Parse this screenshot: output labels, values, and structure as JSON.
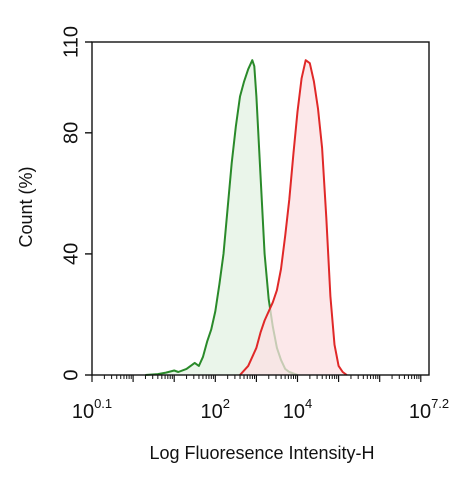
{
  "chart_data": {
    "type": "area",
    "title": "",
    "xlabel": "Log Fluoresence Intensity-H",
    "ylabel": "Count  (%)",
    "x_scale": "log",
    "xlim_exp": [
      -1,
      7.2
    ],
    "ylim": [
      0,
      110
    ],
    "y_ticks": [
      0,
      40,
      80,
      110
    ],
    "x_ticks": [
      {
        "exp": -1,
        "base": "10",
        "sup": "0.1"
      },
      {
        "exp": 2,
        "base": "10",
        "sup": "2"
      },
      {
        "exp": 4,
        "base": "10",
        "sup": "4"
      },
      {
        "exp": 7.2,
        "base": "10",
        "sup": "7.2"
      }
    ],
    "grid": false,
    "legend": "none",
    "series": [
      {
        "color": "#2a8a2a",
        "fill": "#e3f1e3",
        "points": [
          [
            0.3,
            0
          ],
          [
            0.6,
            0.3
          ],
          [
            0.8,
            0.8
          ],
          [
            1.0,
            1.5
          ],
          [
            1.1,
            1
          ],
          [
            1.3,
            2
          ],
          [
            1.5,
            4
          ],
          [
            1.6,
            3
          ],
          [
            1.7,
            6
          ],
          [
            1.8,
            11
          ],
          [
            1.9,
            15
          ],
          [
            2.0,
            21
          ],
          [
            2.1,
            30
          ],
          [
            2.2,
            40
          ],
          [
            2.3,
            55
          ],
          [
            2.4,
            70
          ],
          [
            2.5,
            82
          ],
          [
            2.6,
            92
          ],
          [
            2.7,
            97
          ],
          [
            2.8,
            101
          ],
          [
            2.9,
            104
          ],
          [
            2.95,
            102
          ],
          [
            3.0,
            92
          ],
          [
            3.1,
            66
          ],
          [
            3.2,
            40
          ],
          [
            3.3,
            25
          ],
          [
            3.4,
            16
          ],
          [
            3.5,
            9
          ],
          [
            3.6,
            5
          ],
          [
            3.7,
            2
          ],
          [
            3.8,
            1
          ],
          [
            3.9,
            0.5
          ],
          [
            4.0,
            0
          ]
        ]
      },
      {
        "color": "#e02828",
        "fill": "#fbe0e3",
        "points": [
          [
            2.6,
            0
          ],
          [
            2.8,
            3
          ],
          [
            3.0,
            9
          ],
          [
            3.1,
            14
          ],
          [
            3.2,
            18
          ],
          [
            3.3,
            21
          ],
          [
            3.4,
            24
          ],
          [
            3.5,
            28
          ],
          [
            3.6,
            35
          ],
          [
            3.7,
            46
          ],
          [
            3.8,
            58
          ],
          [
            3.9,
            73
          ],
          [
            4.0,
            87
          ],
          [
            4.1,
            98
          ],
          [
            4.2,
            104
          ],
          [
            4.3,
            103
          ],
          [
            4.4,
            97
          ],
          [
            4.5,
            88
          ],
          [
            4.6,
            75
          ],
          [
            4.7,
            52
          ],
          [
            4.8,
            26
          ],
          [
            4.9,
            10
          ],
          [
            5.0,
            3
          ],
          [
            5.1,
            1
          ],
          [
            5.2,
            0
          ]
        ]
      }
    ]
  }
}
